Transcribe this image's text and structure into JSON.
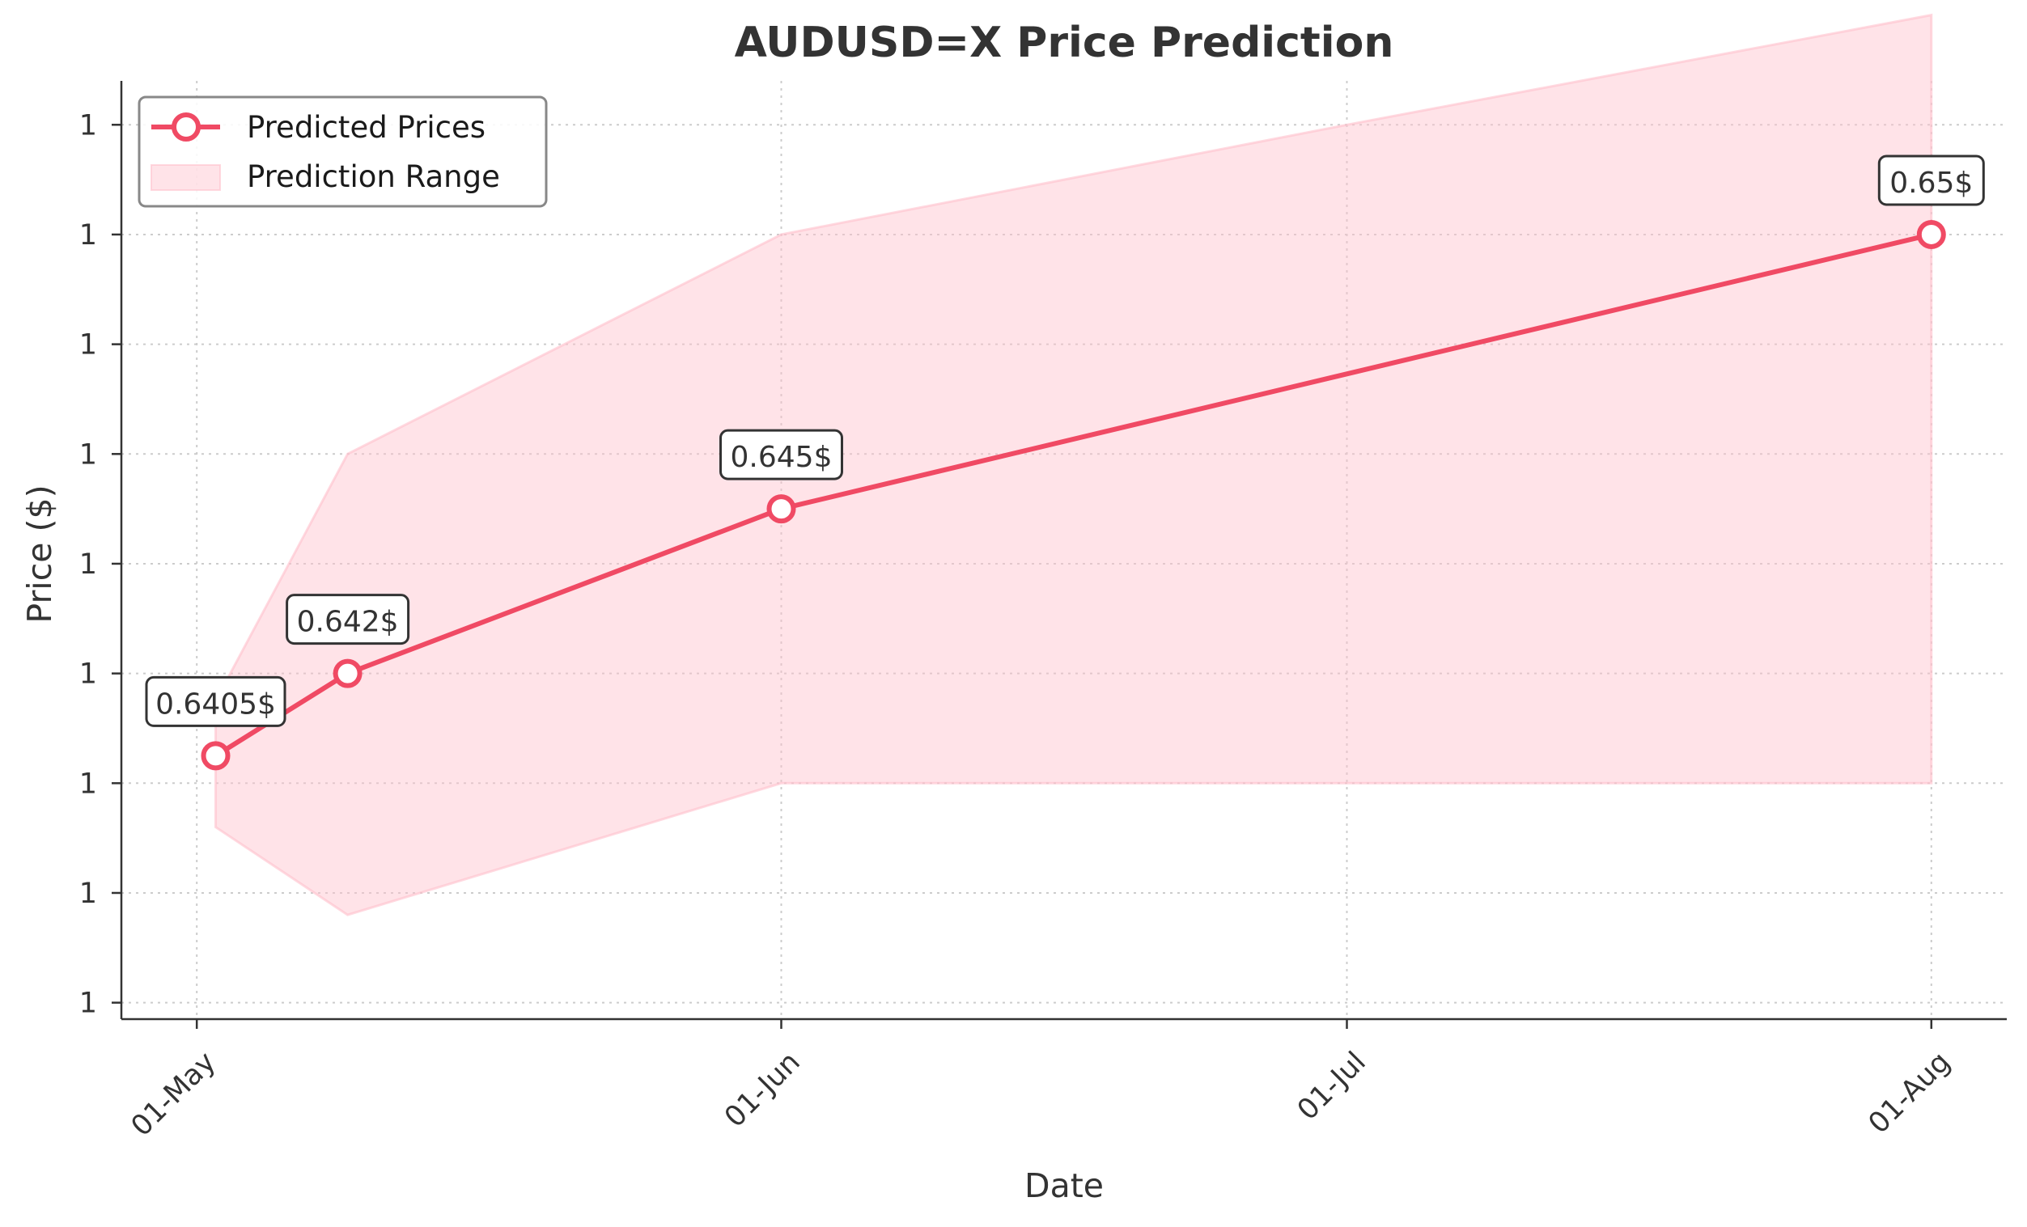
{
  "chart_data": {
    "type": "line",
    "title": "AUDUSD=X Price Prediction",
    "xlabel": "Date",
    "ylabel": "Price ($)",
    "x_ticks": [
      {
        "date": "2024-05-01",
        "label": "01-May"
      },
      {
        "date": "2024-06-01",
        "label": "01-Jun"
      },
      {
        "date": "2024-07-01",
        "label": "01-Jul"
      },
      {
        "date": "2024-08-01",
        "label": "01-Aug"
      }
    ],
    "y_ticks": [
      {
        "value": 0.636,
        "label": "1"
      },
      {
        "value": 0.638,
        "label": "1"
      },
      {
        "value": 0.64,
        "label": "1"
      },
      {
        "value": 0.642,
        "label": "1"
      },
      {
        "value": 0.644,
        "label": "1"
      },
      {
        "value": 0.646,
        "label": "1"
      },
      {
        "value": 0.648,
        "label": "1"
      },
      {
        "value": 0.65,
        "label": "1"
      },
      {
        "value": 0.652,
        "label": "1"
      }
    ],
    "xlim": [
      "2024-04-27",
      "2024-08-05"
    ],
    "ylim": [
      0.6357,
      0.6528
    ],
    "grid": true,
    "legend_position": "top-left",
    "series": [
      {
        "name": "Predicted Prices",
        "color": "#f04a64",
        "points": [
          {
            "date": "2024-05-02",
            "value": 0.6405,
            "label": "0.6405$"
          },
          {
            "date": "2024-05-09",
            "value": 0.642,
            "label": "0.642$"
          },
          {
            "date": "2024-06-01",
            "value": 0.645,
            "label": "0.645$"
          },
          {
            "date": "2024-08-01",
            "value": 0.65,
            "label": "0.65$"
          }
        ]
      }
    ],
    "range": {
      "name": "Prediction Range",
      "color": "#ffc0cb",
      "upper": [
        {
          "date": "2024-05-02",
          "value": 0.6415
        },
        {
          "date": "2024-05-09",
          "value": 0.646
        },
        {
          "date": "2024-06-01",
          "value": 0.65
        },
        {
          "date": "2024-07-01",
          "value": 0.652
        },
        {
          "date": "2024-08-01",
          "value": 0.654
        }
      ],
      "lower": [
        {
          "date": "2024-05-02",
          "value": 0.6392
        },
        {
          "date": "2024-05-09",
          "value": 0.6376
        },
        {
          "date": "2024-06-01",
          "value": 0.64
        },
        {
          "date": "2024-07-01",
          "value": 0.64
        },
        {
          "date": "2024-08-01",
          "value": 0.64
        }
      ]
    }
  }
}
